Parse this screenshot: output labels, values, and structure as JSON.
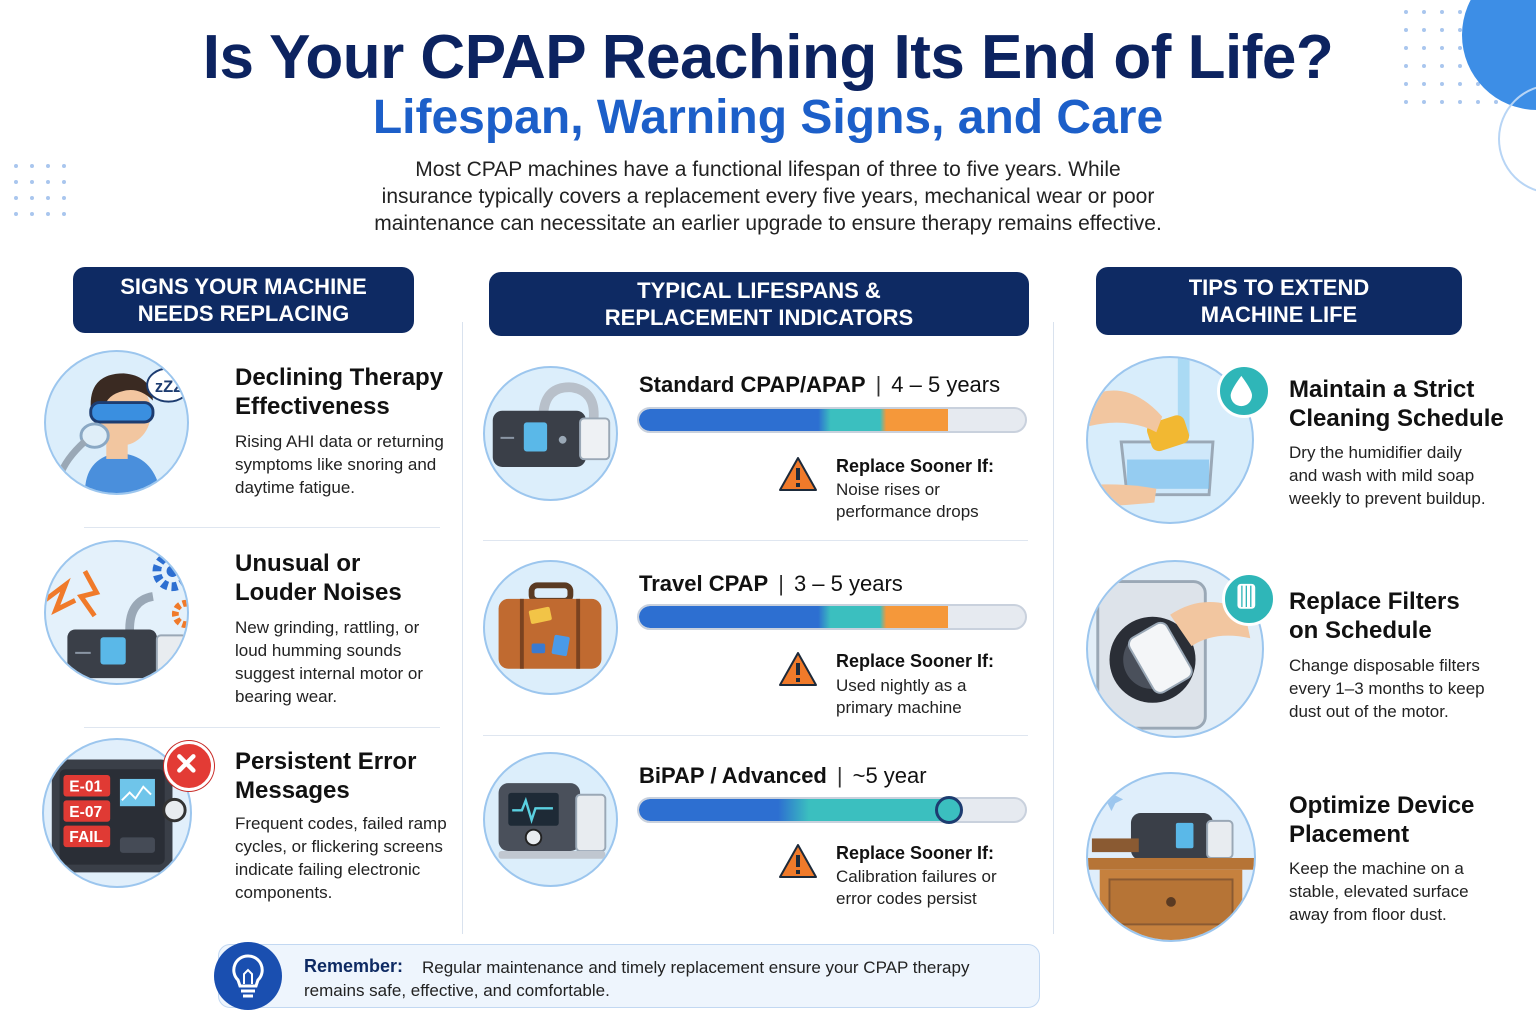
{
  "header": {
    "title": "Is Your CPAP Reaching Its End of Life?",
    "subtitle": "Lifespan, Warning Signs, and Care",
    "intro": "Most CPAP machines have a functional lifespan of three to five years. While insurance typically covers a replacement every five years, mechanical wear or poor maintenance can necessitate an earlier upgrade to ensure therapy remains effective."
  },
  "signs": {
    "heading": "SIGNS YOUR MACHINE\nNEEDS REPLACING",
    "items": [
      {
        "title": "Declining Therapy\nEffectiveness",
        "text": "Rising AHI data or returning\nsymptoms like snoring and\ndaytime fatigue.",
        "icon": "sleeping-person-mask-icon",
        "bubble": "zZZ"
      },
      {
        "title": "Unusual or\nLouder Noises",
        "text": "New grinding, rattling, or\nloud humming sounds\nsuggest internal motor or\nbearing wear.",
        "icon": "noisy-machine-gears-icon"
      },
      {
        "title": "Persistent Error\nMessages",
        "text": "Frequent codes, failed ramp\ncycles, or flickering screens\nindicate failing electronic\ncomponents.",
        "icon": "error-screen-icon",
        "codes": [
          "E-01",
          "E-07",
          "FAIL"
        ]
      }
    ]
  },
  "lifespans": {
    "heading": "TYPICAL LIFESPANS &\nREPLACEMENT INDICATORS",
    "items": [
      {
        "name": "Standard CPAP/APAP",
        "range": "4 – 5 years",
        "level": 0.8,
        "warn_title": "Replace Sooner If:",
        "warn_text": "Noise rises or\nperformance drops",
        "icon": "standard-cpap-icon"
      },
      {
        "name": "Travel CPAP",
        "range": "3 – 5 years",
        "level": 0.8,
        "warn_title": "Replace Sooner If:",
        "warn_text": "Used nightly as a\nprimary machine",
        "icon": "suitcase-icon"
      },
      {
        "name": "BiPAP / Advanced",
        "range": "~5 year",
        "level": 0.8,
        "warn_title": "Replace Sooner If:",
        "warn_text": "Calibration failures or\nerror codes persist",
        "icon": "bipap-machine-icon"
      }
    ]
  },
  "tips": {
    "heading": "TIPS TO EXTEND\nMACHINE LIFE",
    "items": [
      {
        "title": "Maintain a Strict\nCleaning Schedule",
        "text": "Dry the humidifier daily\nand wash with mild soap\nweekly to prevent buildup.",
        "icon": "washing-humidifier-icon"
      },
      {
        "title": "Replace Filters\non Schedule",
        "text": "Change disposable filters\nevery 1–3 months to keep\ndust out of the motor.",
        "icon": "filter-replacement-icon"
      },
      {
        "title": "Optimize Device\nPlacement",
        "text": "Keep the machine on a\nstable, elevated surface\naway from floor dust.",
        "icon": "machine-on-nightstand-icon"
      }
    ]
  },
  "remember": {
    "label": "Remember:",
    "text": "Regular maintenance and timely replacement ensure your CPAP therapy remains safe, effective, and comfortable.",
    "icon": "lightbulb-icon"
  },
  "colors": {
    "navy": "#0e2a63",
    "blue": "#1c5fc9",
    "bar_blue": "#2d6fd1",
    "bar_teal": "#3bbfbf",
    "bar_orange": "#f5983a",
    "warning": "#f07a2a"
  }
}
